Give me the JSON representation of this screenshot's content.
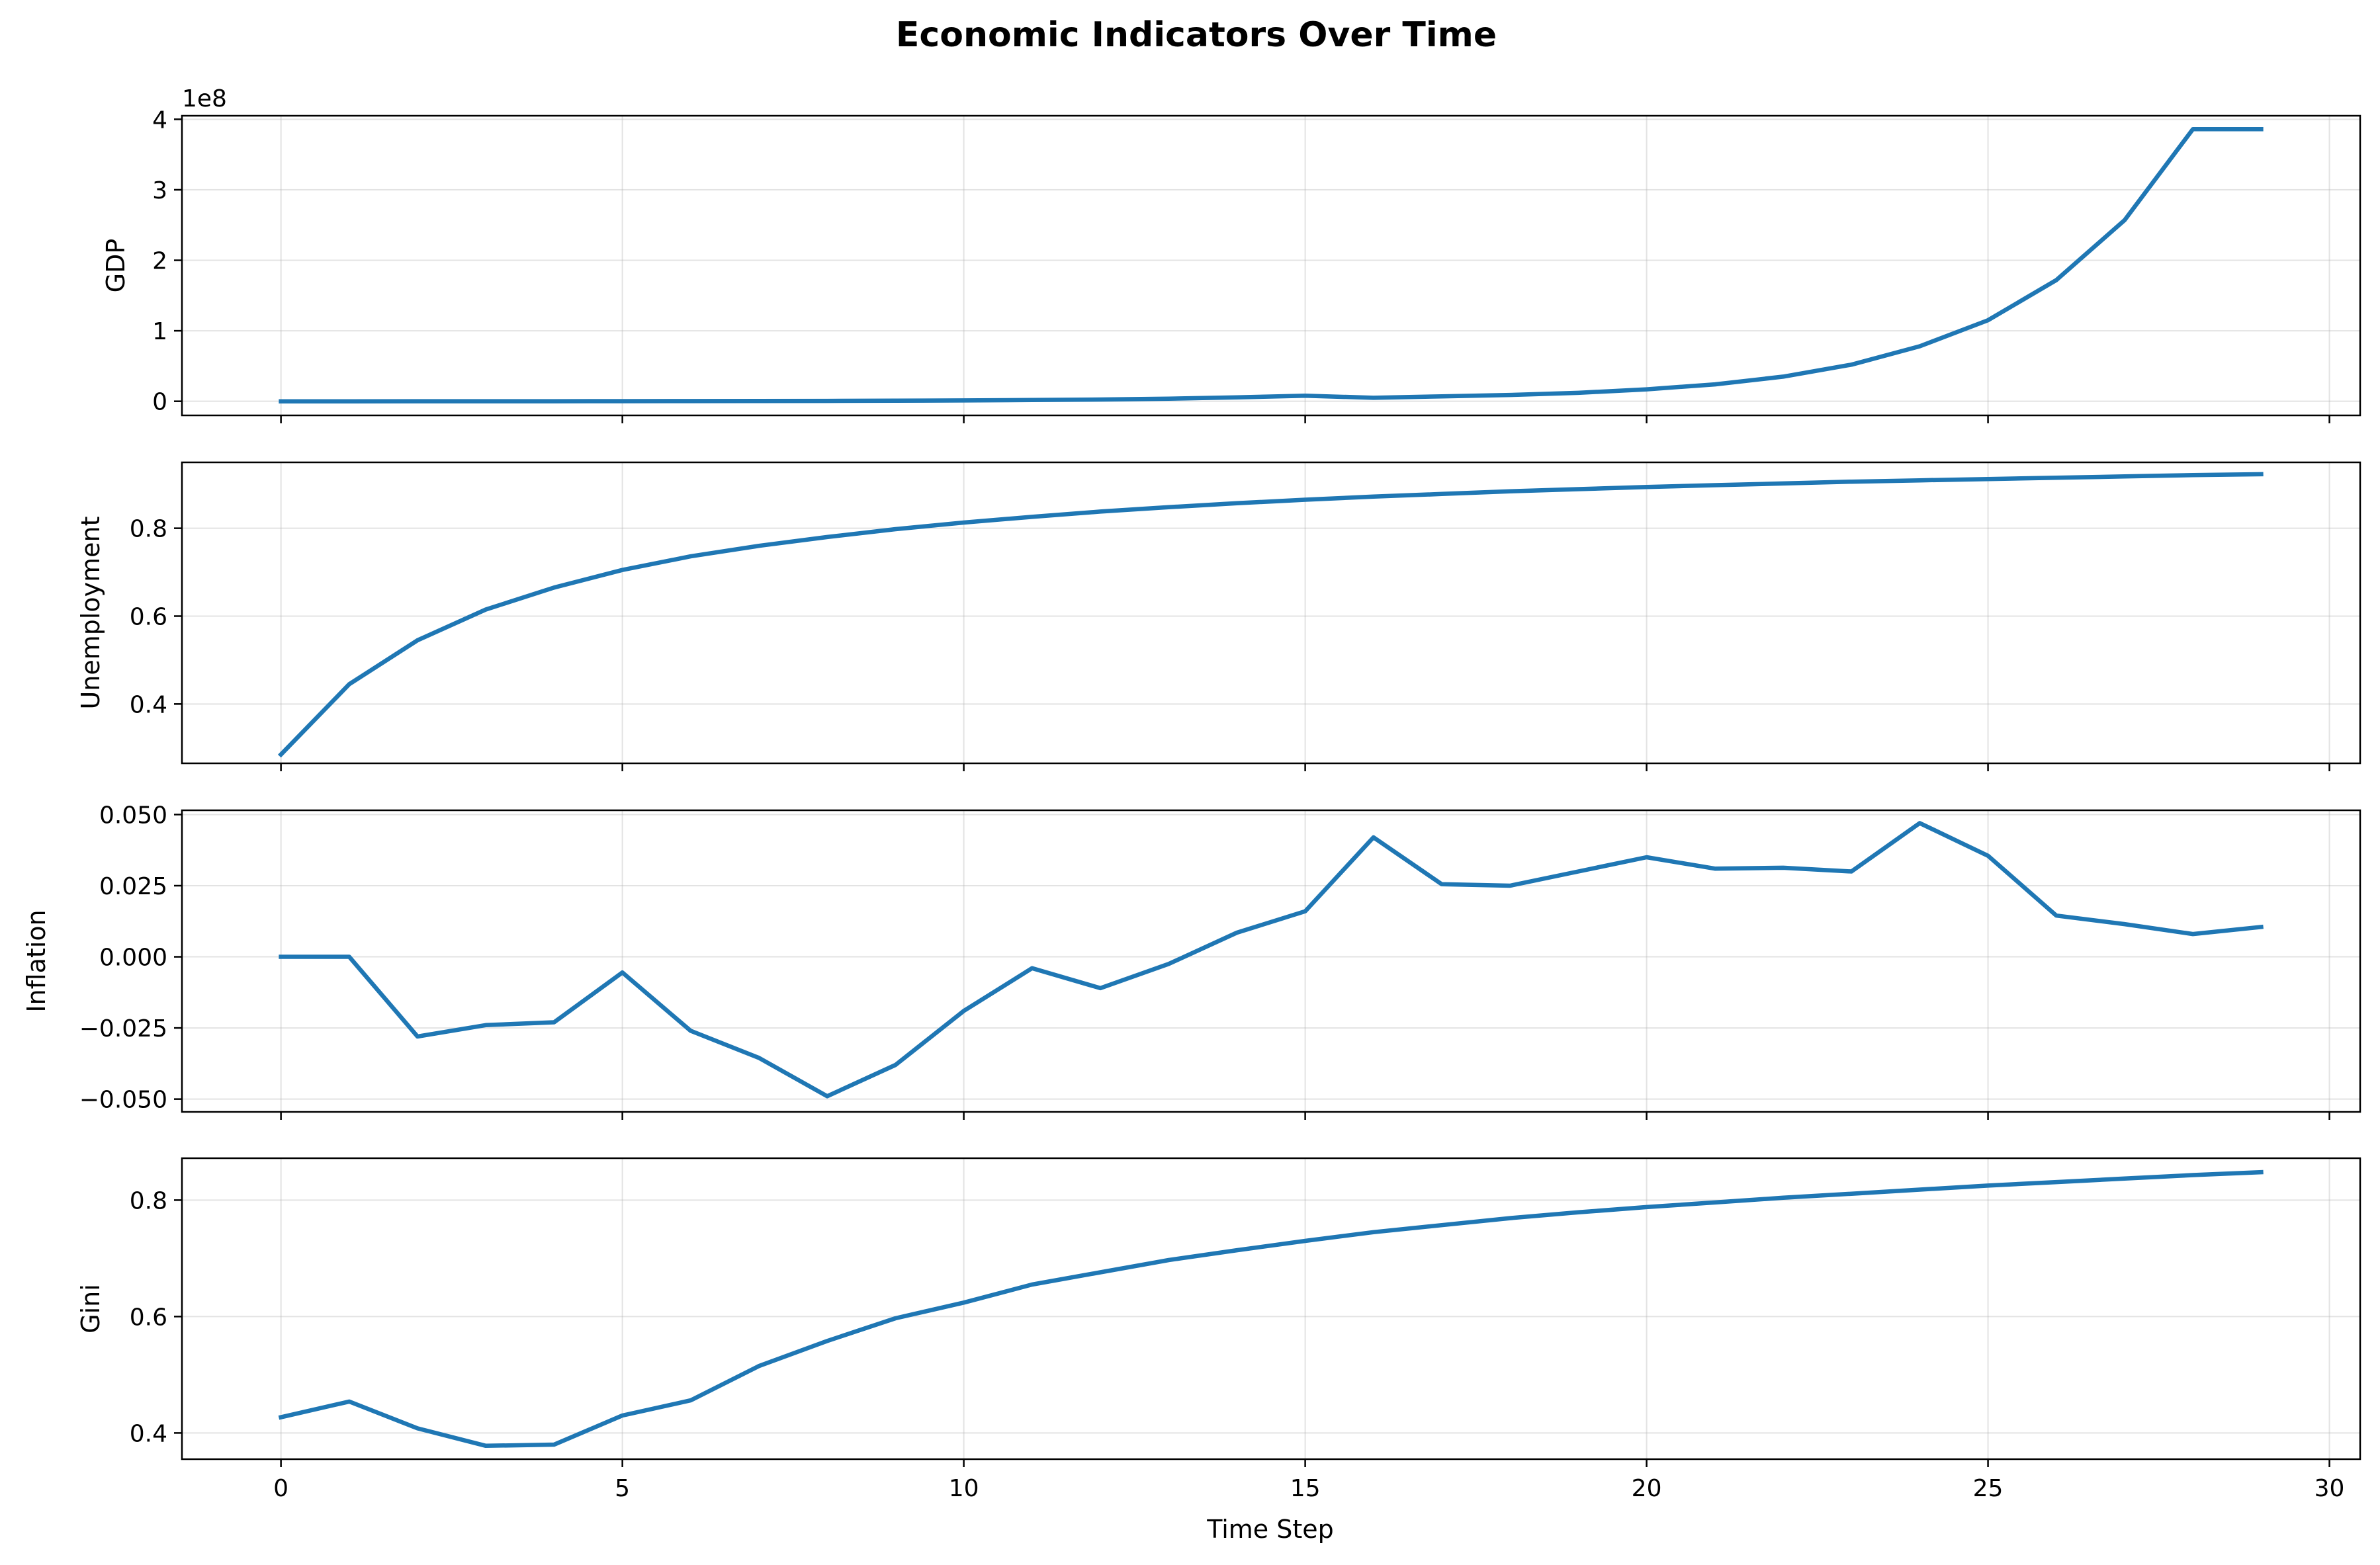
{
  "figure": {
    "title": "Economic Indicators Over Time",
    "xlabel": "Time Step"
  },
  "colors": {
    "line": "#1f77b4",
    "grid": "#b0b0b0",
    "axes": "#000000"
  },
  "chart_data": [
    {
      "type": "line",
      "ylabel": "GDP",
      "offset_text": "1e8",
      "xlim": [
        -1.45,
        30.45
      ],
      "ylim": [
        -20000000.0,
        405000000.0
      ],
      "xticks": [
        0,
        5,
        10,
        15,
        20,
        25,
        30
      ],
      "show_xticklabels": false,
      "yticks": [
        0,
        100000000,
        200000000,
        300000000,
        400000000
      ],
      "ytick_labels": [
        "0",
        "1",
        "2",
        "3",
        "4"
      ],
      "grid": true,
      "x": [
        0,
        1,
        2,
        3,
        4,
        5,
        6,
        7,
        8,
        9,
        10,
        11,
        12,
        13,
        14,
        15,
        16,
        17,
        18,
        19,
        20,
        21,
        22,
        23,
        24,
        25,
        26,
        27,
        28,
        29
      ],
      "values": [
        0,
        20000,
        50000,
        80000,
        120000,
        170000,
        250000,
        370000,
        550000,
        810000,
        1200000,
        1750000,
        2560000,
        3750000,
        5500000,
        8000000,
        5000000,
        7000000,
        9000000,
        12000000,
        17000000,
        24000000,
        35000000,
        52000000,
        78000000,
        115000000,
        172000000,
        257000000,
        386000000,
        386000000
      ]
    },
    {
      "type": "line",
      "ylabel": "Unemployment",
      "xlim": [
        -1.45,
        30.45
      ],
      "ylim": [
        0.265,
        0.95
      ],
      "xticks": [
        0,
        5,
        10,
        15,
        20,
        25,
        30
      ],
      "show_xticklabels": false,
      "yticks": [
        0.4,
        0.6,
        0.8
      ],
      "ytick_labels": [
        "0.4",
        "0.6",
        "0.8"
      ],
      "grid": true,
      "x": [
        0,
        1,
        2,
        3,
        4,
        5,
        6,
        7,
        8,
        9,
        10,
        11,
        12,
        13,
        14,
        15,
        16,
        17,
        18,
        19,
        20,
        21,
        22,
        23,
        24,
        25,
        26,
        27,
        28,
        29
      ],
      "values": [
        0.285,
        0.445,
        0.545,
        0.615,
        0.665,
        0.705,
        0.736,
        0.76,
        0.78,
        0.798,
        0.813,
        0.826,
        0.838,
        0.848,
        0.857,
        0.865,
        0.872,
        0.878,
        0.884,
        0.889,
        0.894,
        0.898,
        0.902,
        0.906,
        0.909,
        0.912,
        0.915,
        0.918,
        0.921,
        0.923
      ]
    },
    {
      "type": "line",
      "ylabel": "Inflation",
      "xlim": [
        -1.45,
        30.45
      ],
      "ylim": [
        -0.0545,
        0.0515
      ],
      "xticks": [
        0,
        5,
        10,
        15,
        20,
        25,
        30
      ],
      "show_xticklabels": false,
      "yticks": [
        -0.05,
        -0.025,
        0.0,
        0.025,
        0.05
      ],
      "ytick_labels": [
        "−0.050",
        "−0.025",
        "0.000",
        "0.025",
        "0.050"
      ],
      "grid": true,
      "x": [
        0,
        1,
        2,
        3,
        4,
        5,
        6,
        7,
        8,
        9,
        10,
        11,
        12,
        13,
        14,
        15,
        16,
        17,
        18,
        19,
        20,
        21,
        22,
        23,
        24,
        25,
        26,
        27,
        28,
        29
      ],
      "values": [
        0.0,
        0.0,
        -0.028,
        -0.024,
        -0.023,
        -0.0055,
        -0.026,
        -0.0355,
        -0.049,
        -0.038,
        -0.019,
        -0.004,
        -0.011,
        -0.0025,
        0.0085,
        0.016,
        0.042,
        0.0255,
        0.025,
        0.03,
        0.035,
        0.031,
        0.0313,
        0.03,
        0.047,
        0.0355,
        0.0145,
        0.0115,
        0.008,
        0.0105
      ]
    },
    {
      "type": "line",
      "ylabel": "Gini",
      "xlim": [
        -1.45,
        30.45
      ],
      "ylim": [
        0.355,
        0.872
      ],
      "xticks": [
        0,
        5,
        10,
        15,
        20,
        25,
        30
      ],
      "show_xticklabels": true,
      "xtick_labels": [
        "0",
        "5",
        "10",
        "15",
        "20",
        "25",
        "30"
      ],
      "yticks": [
        0.4,
        0.6,
        0.8
      ],
      "ytick_labels": [
        "0.4",
        "0.6",
        "0.8"
      ],
      "grid": true,
      "x": [
        0,
        1,
        2,
        3,
        4,
        5,
        6,
        7,
        8,
        9,
        10,
        11,
        12,
        13,
        14,
        15,
        16,
        17,
        18,
        19,
        20,
        21,
        22,
        23,
        24,
        25,
        26,
        27,
        28,
        29
      ],
      "values": [
        0.427,
        0.454,
        0.408,
        0.378,
        0.38,
        0.43,
        0.456,
        0.515,
        0.558,
        0.597,
        0.624,
        0.655,
        0.676,
        0.697,
        0.714,
        0.73,
        0.745,
        0.757,
        0.769,
        0.779,
        0.788,
        0.796,
        0.804,
        0.811,
        0.818,
        0.825,
        0.831,
        0.837,
        0.843,
        0.848
      ]
    }
  ]
}
